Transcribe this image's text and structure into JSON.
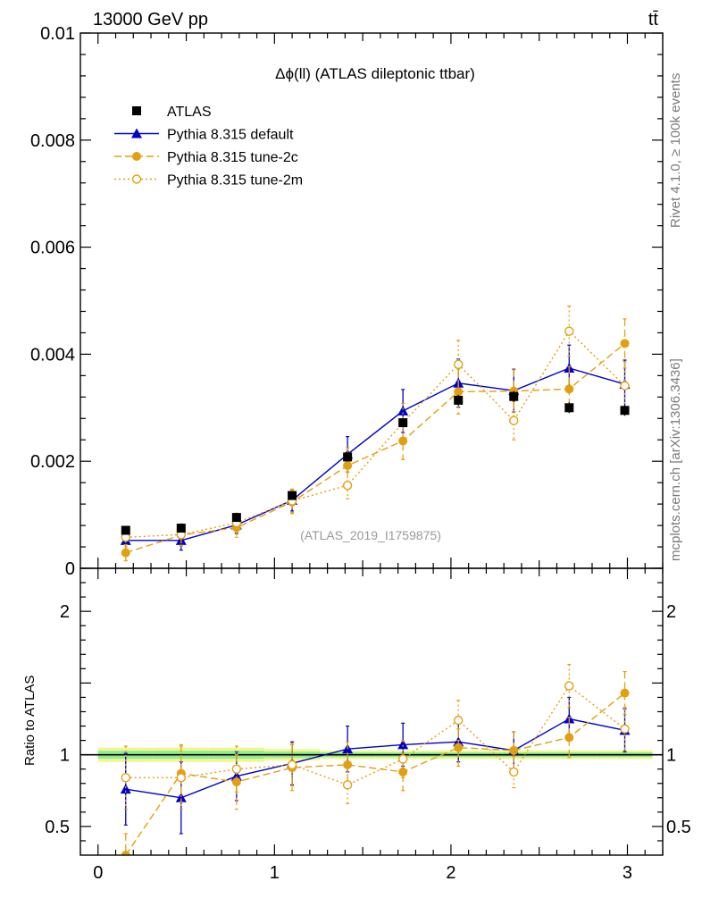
{
  "header": {
    "energy_label": "13000 GeV pp",
    "process_label": "tt̄"
  },
  "side_text": {
    "rivet": "Rivet 4.1.0, ≥ 100k events",
    "mcplots": "mcplots.cern.ch [arXiv:1306.3436]"
  },
  "chart_data": {
    "type": "line",
    "title": "Δϕ(ll) (ATLAS dileptonic ttbar)",
    "watermark": "(ATLAS_2019_I1759875)",
    "xlim": [
      -0.1,
      3.2
    ],
    "ylim": [
      0,
      0.01
    ],
    "ratio_ylim": [
      0.3,
      2.3
    ],
    "ratio_ylabel": "Ratio to ATLAS",
    "x_ticks": [
      {
        "value": 0,
        "label": "0"
      },
      {
        "value": 1,
        "label": "1"
      },
      {
        "value": 2,
        "label": "2"
      },
      {
        "value": 3,
        "label": "3"
      }
    ],
    "y_ticks": [
      {
        "value": 0,
        "label": "0"
      },
      {
        "value": 0.002,
        "label": "0.002"
      },
      {
        "value": 0.004,
        "label": "0.004"
      },
      {
        "value": 0.006,
        "label": "0.006"
      },
      {
        "value": 0.008,
        "label": "0.008"
      },
      {
        "value": 0.01,
        "label": "0.01"
      }
    ],
    "ratio_y_ticks": [
      {
        "value": 0.5,
        "label": "0.5"
      },
      {
        "value": 1,
        "label": "1"
      },
      {
        "value": 2,
        "label": "2"
      }
    ],
    "x": [
      0.157,
      0.471,
      0.785,
      1.1,
      1.414,
      1.728,
      2.042,
      2.356,
      2.67,
      2.985
    ],
    "series": [
      {
        "name": "ATLAS",
        "style": "data",
        "color": "#000000",
        "marker": "square",
        "dash": "none",
        "values": [
          0.00071,
          0.00075,
          0.00095,
          0.00136,
          0.00208,
          0.00272,
          0.00314,
          0.00321,
          0.003,
          0.00295
        ],
        "errors": [
          5e-05,
          5e-05,
          6e-05,
          6e-05,
          8e-05,
          8e-05,
          0.0001,
          0.0001,
          0.0001,
          0.0001
        ],
        "ratio_errors": [
          0.05,
          0.05,
          0.05,
          0.04,
          0.03,
          0.03,
          0.03,
          0.03,
          0.03,
          0.03
        ]
      },
      {
        "name": "Pythia 8.315 default",
        "style": "mc",
        "color": "#0000cc",
        "marker": "triangle",
        "dash": "none",
        "values": [
          0.00052,
          0.00052,
          0.00081,
          0.00127,
          0.00213,
          0.00294,
          0.00346,
          0.00332,
          0.00374,
          0.00344
        ],
        "errors": [
          0.00018,
          0.00018,
          0.00016,
          0.0002,
          0.00033,
          0.0004,
          0.00045,
          0.0004,
          0.00043,
          0.00045
        ],
        "ratios": [
          0.76,
          0.7,
          0.85,
          0.94,
          1.04,
          1.07,
          1.09,
          1.03,
          1.25,
          1.17
        ],
        "ratio_errors": [
          0.25,
          0.25,
          0.17,
          0.15,
          0.16,
          0.15,
          0.14,
          0.13,
          0.15,
          0.15
        ]
      },
      {
        "name": "Pythia 8.315 tune-2c",
        "style": "mc",
        "color": "#e2a010",
        "marker": "circle",
        "dash": "8,4",
        "values": [
          0.00029,
          0.00062,
          0.00076,
          0.00124,
          0.00192,
          0.00238,
          0.0033,
          0.00331,
          0.00335,
          0.0042
        ],
        "errors": [
          0.00015,
          0.0002,
          0.00018,
          0.00022,
          0.00033,
          0.00035,
          0.00042,
          0.0004,
          0.00042,
          0.00046
        ],
        "ratios": [
          0.3,
          0.87,
          0.81,
          0.91,
          0.93,
          0.88,
          1.05,
          1.03,
          1.12,
          1.43
        ],
        "ratio_errors": [
          0.15,
          0.2,
          0.19,
          0.16,
          0.16,
          0.13,
          0.13,
          0.13,
          0.14,
          0.15
        ]
      },
      {
        "name": "Pythia 8.315 tune-2m",
        "style": "mc",
        "color": "#e2a010",
        "marker": "open-circle",
        "dash": "2,3",
        "values": [
          0.00058,
          0.00063,
          0.00085,
          0.00126,
          0.00155,
          0.00272,
          0.00381,
          0.00276,
          0.00443,
          0.00341
        ],
        "errors": [
          0.00018,
          0.0002,
          0.00018,
          0.00022,
          0.00025,
          0.00036,
          0.00045,
          0.00036,
          0.00047,
          0.00045
        ],
        "ratios": [
          0.84,
          0.84,
          0.9,
          0.93,
          0.79,
          0.97,
          1.24,
          0.88,
          1.48,
          1.18
        ],
        "ratio_errors": [
          0.22,
          0.22,
          0.16,
          0.15,
          0.13,
          0.13,
          0.14,
          0.11,
          0.15,
          0.15
        ]
      }
    ]
  }
}
